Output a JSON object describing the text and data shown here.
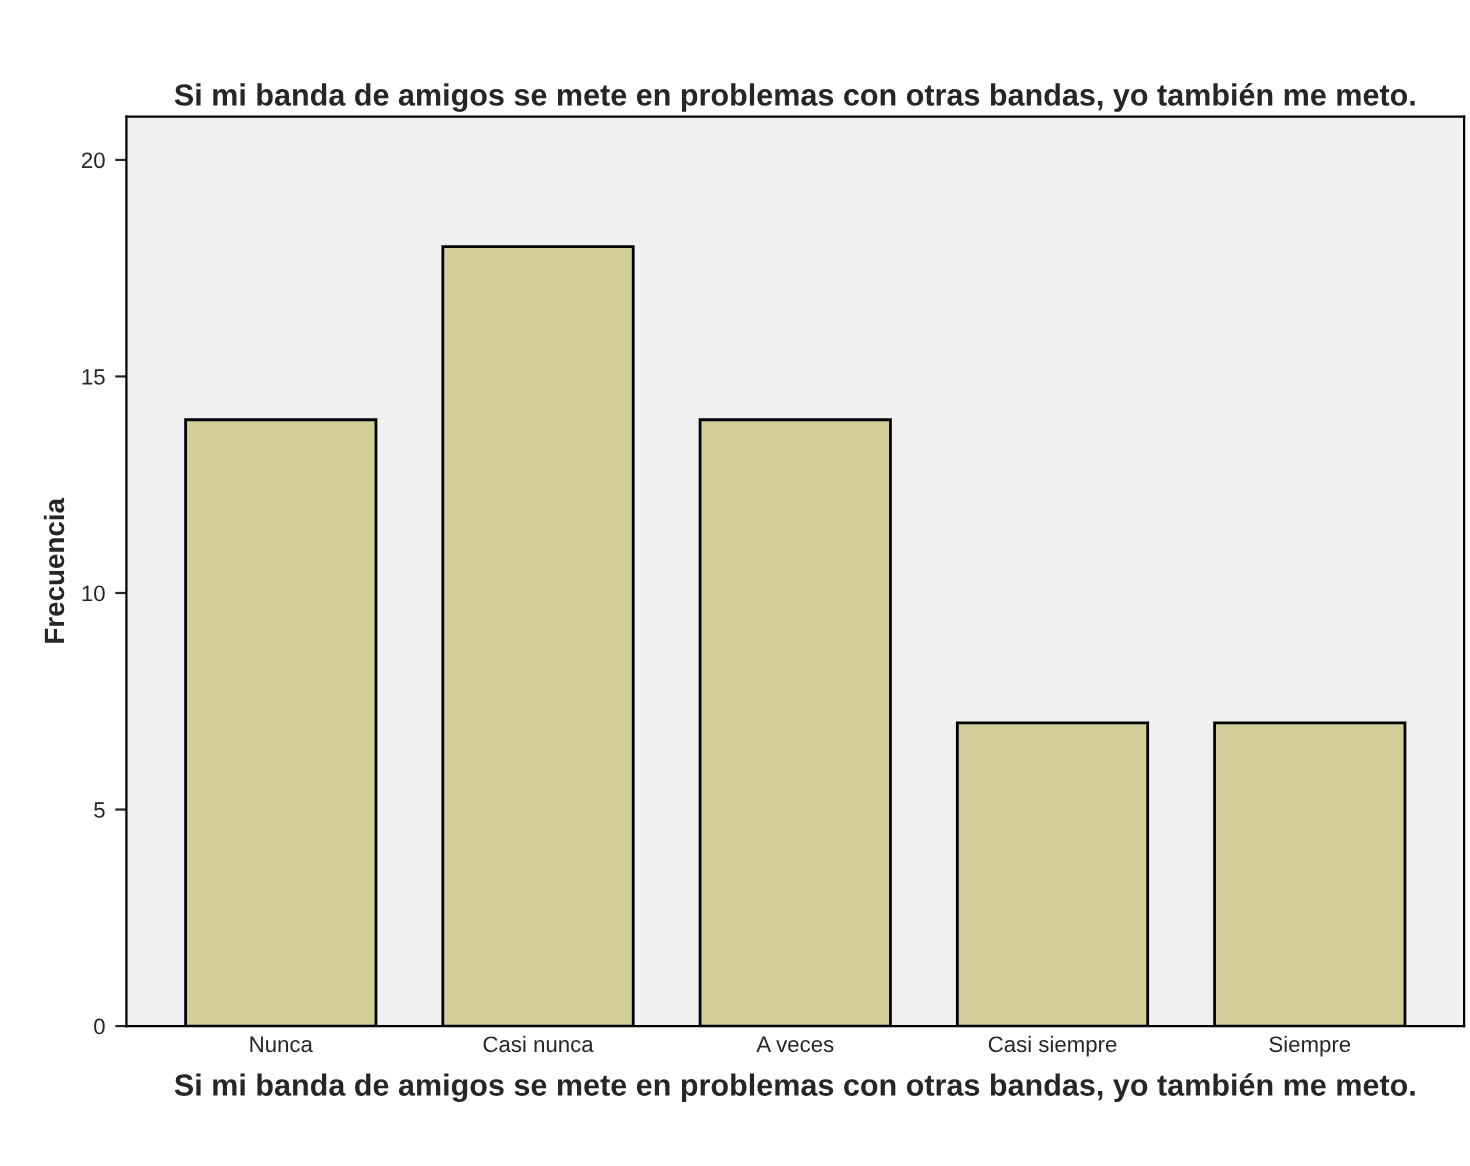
{
  "chart_data": {
    "type": "bar",
    "title": "Si mi banda de amigos se mete en problemas con otras bandas, yo también me meto.",
    "xlabel": "Si mi banda de amigos se mete en problemas con otras bandas, yo también me meto.",
    "ylabel": "Frecuencia",
    "categories": [
      "Nunca",
      "Casi nunca",
      "A veces",
      "Casi siempre",
      "Siempre"
    ],
    "values": [
      14,
      18,
      14,
      7,
      7
    ],
    "color": "#d3ce97",
    "ylim": [
      0,
      21
    ],
    "yticks": [
      0,
      5,
      10,
      15,
      20
    ],
    "grid": false
  }
}
